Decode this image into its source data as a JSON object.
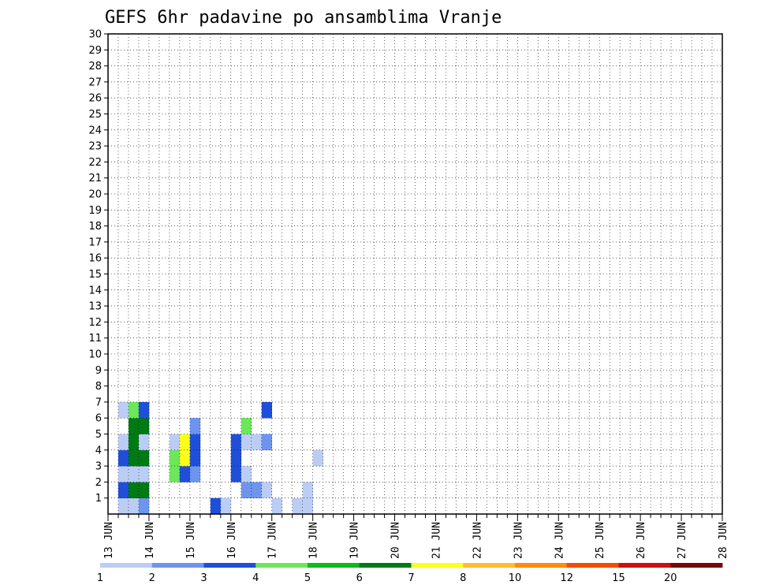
{
  "chart_data": {
    "type": "heatmap",
    "title": "GEFS 6hr padavine po ansamblima Vranje",
    "xlabel": "",
    "ylabel": "",
    "x_tick_labels": [
      "13 JUN",
      "14 JUN",
      "15 JUN",
      "16 JUN",
      "17 JUN",
      "18 JUN",
      "19 JUN",
      "20 JUN",
      "21 JUN",
      "22 JUN",
      "23 JUN",
      "24 JUN",
      "25 JUN",
      "26 JUN",
      "27 JUN",
      "28 JUN"
    ],
    "y_tick_labels": [
      "1",
      "2",
      "3",
      "4",
      "5",
      "6",
      "7",
      "8",
      "9",
      "10",
      "11",
      "12",
      "13",
      "14",
      "15",
      "16",
      "17",
      "18",
      "19",
      "20",
      "21",
      "22",
      "23",
      "24",
      "25",
      "26",
      "27",
      "28",
      "29",
      "30"
    ],
    "grid": true,
    "time_steps_per_day": 4,
    "members": 30,
    "colorbar": {
      "tick_labels": [
        "1",
        "2",
        "3",
        "4",
        "5",
        "6",
        "7",
        "8",
        "10",
        "12",
        "15",
        "20"
      ],
      "colors": [
        "#bccdf5",
        "#6d95ee",
        "#1f4fd9",
        "#6be85a",
        "#0fb81c",
        "#007a14",
        "#ffff1c",
        "#ffbb33",
        "#ff8a0d",
        "#f24d00",
        "#cc1010",
        "#780a05"
      ]
    },
    "color_scale": {
      "legend_colors": [
        "#bccdf5",
        "#6d95ee",
        "#1f4fd9",
        "#6be85a",
        "#0fb81c",
        "#007a14",
        "#ffff1c",
        "#ffbb33",
        "#ff8a0d",
        "#f24d00",
        "#cc1010",
        "#780a05"
      ],
      "cell_codes": "0 = no precipitation; 1..12 = class index into legend_colors"
    },
    "rows": [
      "0112000000310000101100000000000000000000000000000000000000",
      "0366000000000221000100000000000000000000000000000000000000",
      "0111004320003100000000000000000000000000000000000000000000",
      "0366004730003000000010000000000000000000000000000000000000",
      "0161001730003112000000000000000000000000000000000000000000",
      "0066000020000400000000000000000000000000000000000000000000",
      "0143000000000003000000000000000000000000000000000000000000",
      "0000000000000000000000000000000000000000000000000000000000",
      "0000000000000000000000000000000000000000000000000000000000",
      "0000000000000000000000000000000000000000000000000000000000",
      "0000000000000000000000000000000000000000000000000000000000",
      "0000000000000000000000000000000000000000000000000000000000",
      "0000000000000000000000000000000000000000000000000000000000",
      "0000000000000000000000000000000000000000000000000000000000",
      "0000000000000000000000000000000000000000000000000000000000",
      "0000000000000000000000000000000000000000000000000000000000",
      "0000000000000000000000000000000000000000000000000000000000",
      "0000000000000000000000000000000000000000000000000000000000",
      "0000000000000000000000000000000000000000000000000000000000",
      "0000000000000000000000000000000000000000000000000000000000",
      "0000000000000000000000000000000000000000000000000000000000",
      "0000000000000000000000000000000000000000000000000000000000",
      "0000000000000000000000000000000000000000000000000000000000",
      "0000000000000000000000000000000000000000000000000000000000",
      "0000000000000000000000000000000000000000000000000000000000",
      "0000000000000000000000000000000000000000000000000000000000",
      "0000000000000000000000000000000000000000000000000000000000",
      "0000000000000000000000000000000000000000000000000000000000",
      "0000000000000000000000000000000000000000000000000000000000",
      "0000000000000000000000000000000000000000000000000000000000"
    ]
  }
}
